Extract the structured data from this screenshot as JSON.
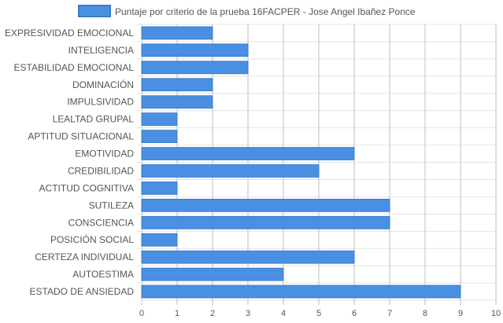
{
  "chart_data": {
    "type": "bar",
    "orientation": "horizontal",
    "categories": [
      "EXPRESIVIDAD EMOCIONAL",
      "INTELIGENCIA",
      "ESTABILIDAD EMOCIONAL",
      "DOMINACIÓN",
      "IMPULSIVIDAD",
      "LEALTAD GRUPAL",
      "APTITUD SITUACIONAL",
      "EMOTIVIDAD",
      "CREDIBILIDAD",
      "ACTITUD COGNITIVA",
      "SUTILEZA",
      "CONSCIENCIA",
      "POSICIÓN SOCIAL",
      "CERTEZA INDIVIDUAL",
      "AUTOESTIMA",
      "ESTADO DE ANSIEDAD"
    ],
    "series": [
      {
        "name": "Puntaje por criterio de la prueba 16FACPER - Jose Angel Ibañez Ponce",
        "values": [
          2,
          3,
          3,
          2,
          2,
          1,
          1,
          6,
          5,
          1,
          7,
          7,
          1,
          6,
          4,
          9
        ],
        "color": "#4a90e2",
        "border_color": "#3a7bc8"
      }
    ],
    "xlim": [
      0,
      10
    ],
    "x_ticks": [
      0,
      1,
      2,
      3,
      4,
      5,
      6,
      7,
      8,
      9,
      10
    ],
    "grid": true,
    "legend_position": "top"
  }
}
